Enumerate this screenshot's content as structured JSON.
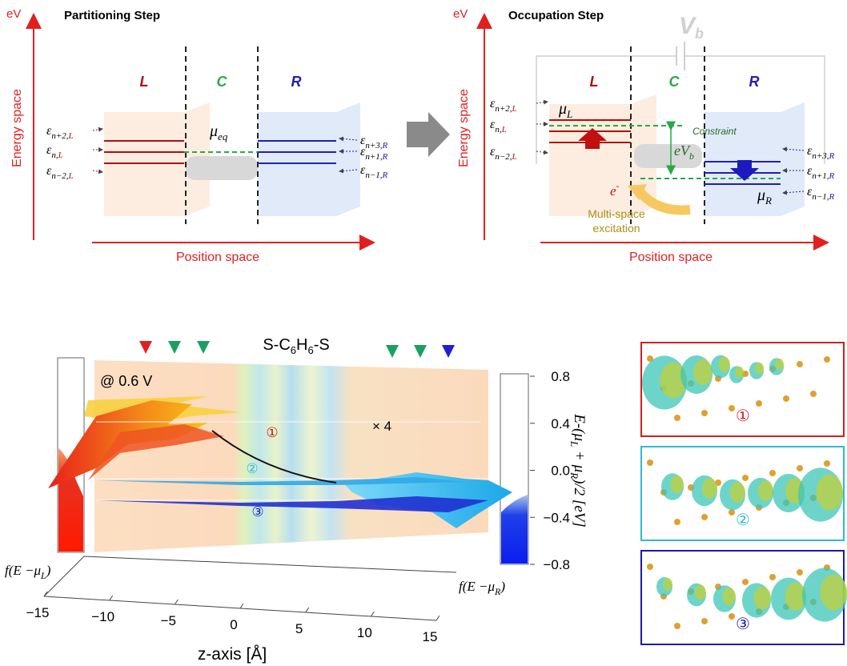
{
  "top_left": {
    "axis_unit": "eV",
    "title": "Partitioning Step",
    "y_label": "Energy space",
    "x_label": "Position space",
    "regions": [
      "L",
      "C",
      "R"
    ],
    "mu": {
      "symbol": "μ",
      "sub": "eq"
    },
    "left_levels": [
      {
        "symbol": "ε",
        "sub": "n+2,",
        "side": "L"
      },
      {
        "symbol": "ε",
        "sub": "n,",
        "side": "L"
      },
      {
        "symbol": "ε",
        "sub": "n−2,",
        "side": "L"
      }
    ],
    "right_levels": [
      {
        "symbol": "ε",
        "sub": "n+3,",
        "side": "R"
      },
      {
        "symbol": "ε",
        "sub": "n+1,",
        "side": "R"
      },
      {
        "symbol": "ε",
        "sub": "n−1,",
        "side": "R"
      }
    ]
  },
  "top_right": {
    "axis_unit": "eV",
    "title": "Occupation Step",
    "y_label": "Energy space",
    "x_label": "Position space",
    "bias": {
      "symbol": "V",
      "sub": "b"
    },
    "regions": [
      "L",
      "C",
      "R"
    ],
    "mu_L": {
      "symbol": "μ",
      "sub": "L"
    },
    "mu_R": {
      "symbol": "μ",
      "sub": "R"
    },
    "constraint": "Constraint",
    "bias_gap": {
      "symbol": "eV",
      "sub": "b"
    },
    "electron": {
      "symbol": "e",
      "sup": "-"
    },
    "excitation": [
      "Multi-space",
      "excitation"
    ],
    "left_levels": [
      {
        "symbol": "ε",
        "sub": "n+2,",
        "side": "L"
      },
      {
        "symbol": "ε",
        "sub": "n,",
        "side": "L"
      },
      {
        "symbol": "ε",
        "sub": "n−2,",
        "side": "L"
      }
    ],
    "right_levels": [
      {
        "symbol": "ε",
        "sub": "n+3,",
        "side": "R"
      },
      {
        "symbol": "ε",
        "sub": "n+1,",
        "side": "R"
      },
      {
        "symbol": "ε",
        "sub": "n−1,",
        "side": "R"
      }
    ]
  },
  "bottom": {
    "molecule": [
      "S-C",
      "6",
      "H",
      "6",
      "-S"
    ],
    "bias_label": "@ 0.6 V",
    "scale_note": "× 4",
    "state_markers": [
      "①",
      "②",
      "③"
    ],
    "x_label": "z-axis [Å]",
    "xlim": [
      -15,
      15
    ],
    "xticks": [
      {
        "value": -15,
        "label": "−15"
      },
      {
        "value": -10,
        "label": "−10"
      },
      {
        "value": -5,
        "label": "−5"
      },
      0,
      5,
      10,
      15
    ],
    "y_label": [
      "E-(μ",
      "L",
      " + μ",
      "R",
      ")/2 [eV]"
    ],
    "ylim": [
      -0.8,
      0.8
    ],
    "yticks": [
      0.8,
      0.4,
      {
        "value": 0,
        "label": "0.0"
      },
      {
        "value": -0.4,
        "label": "−0.4"
      },
      {
        "value": -0.8,
        "label": "−0.8"
      }
    ],
    "fermi_left": [
      "f(E −μ",
      "L",
      ")"
    ],
    "fermi_right": [
      "f(E −μ",
      "R",
      ")"
    ]
  },
  "orbitals": {
    "labels": [
      "①",
      "②",
      "③"
    ]
  }
}
